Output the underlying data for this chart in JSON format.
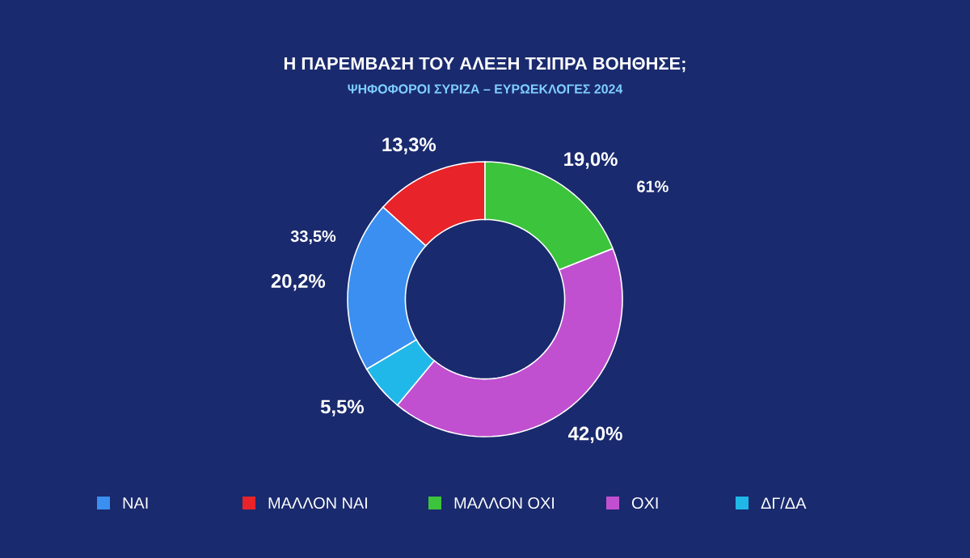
{
  "chart_data": {
    "type": "donut",
    "title": "Η ΠΑΡΕΜΒΑΣΗ ΤΟΥ ΑΛΕΞΗ ΤΣΙΠΡΑ ΒΟΗΘΗΣΕ;",
    "subtitle": "ΨΗΦΟΦΟΡΟΙ ΣΥΡΙΖΑ – ΕΥΡΩΕΚΛΟΓΕΣ 2024",
    "categories": [
      "ΝΑΙ",
      "ΜΑΛΛΟΝ ΝΑΙ",
      "ΜΑΛΛΟΝ ΟΧΙ",
      "ΟΧΙ",
      "ΔΓ/ΔΑ"
    ],
    "values": [
      20.2,
      13.3,
      19.0,
      42.0,
      5.5
    ],
    "value_labels": [
      "20,2%",
      "13,3%",
      "19,0%",
      "42,0%",
      "5,5%"
    ],
    "colors": [
      "#3a8ff0",
      "#e8232a",
      "#3cc43c",
      "#c050d0",
      "#20b8e8"
    ],
    "annotations": [
      "33,5%",
      "61%"
    ],
    "legend": "bottom"
  }
}
